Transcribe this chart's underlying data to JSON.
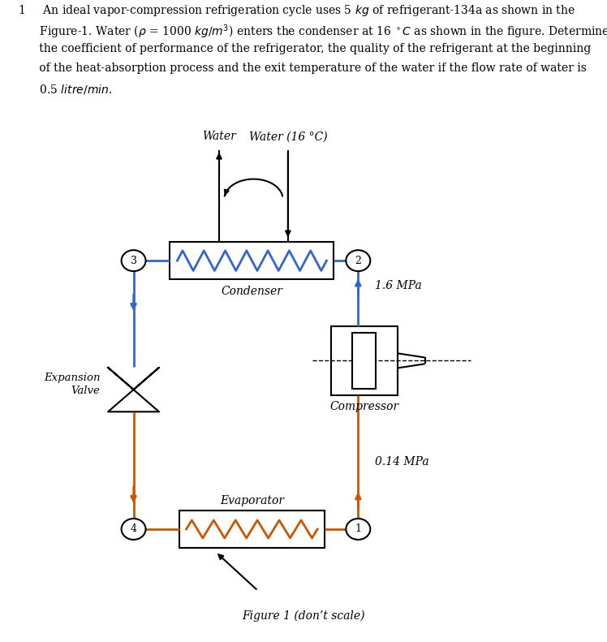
{
  "fig_caption": "Figure 1 (don’t scale)",
  "blue_color": "#3366CC",
  "orange_color": "#CC5500",
  "black_color": "#000000",
  "bg_color": "#ffffff",
  "note1": "Water",
  "note2": "Water (16 °C)",
  "note3": "1.6 MPa",
  "note4": "0.14 MPa",
  "note5": "Condenser",
  "note6": "Evaporator",
  "note7": "Compressor",
  "note8": "Expansion\nValve"
}
